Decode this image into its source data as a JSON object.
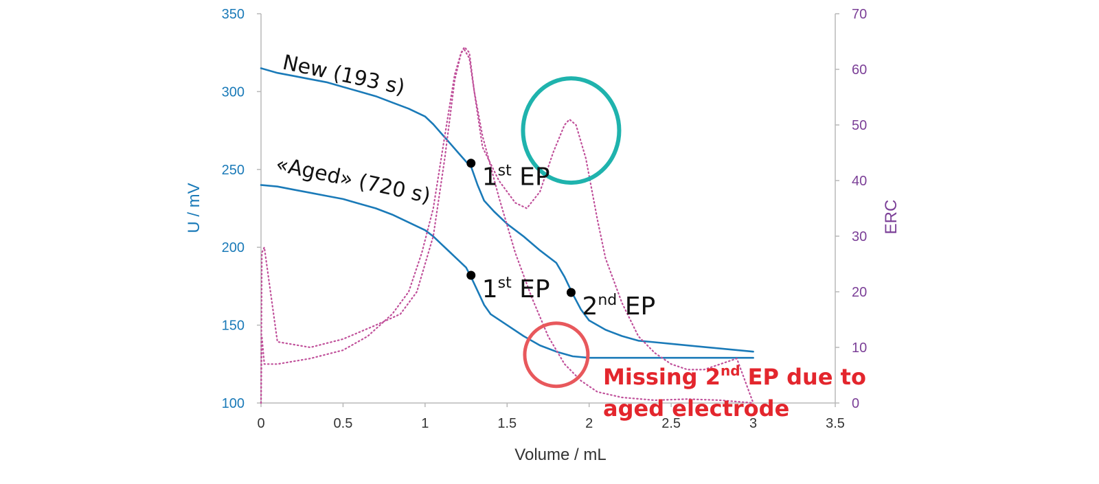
{
  "chart_data": {
    "type": "line",
    "xlabel": "Volume / mL",
    "ylabel_left": "U / mV",
    "ylabel_right": "ERC",
    "xlim": [
      0,
      3.5
    ],
    "ylim_left": [
      100,
      350
    ],
    "ylim_right": [
      0,
      70
    ],
    "x_ticks": [
      "0",
      "0.5",
      "1",
      "1.5",
      "2",
      "2.5",
      "3",
      "3.5"
    ],
    "y_left_ticks": [
      "100",
      "150",
      "200",
      "250",
      "300",
      "350"
    ],
    "y_right_ticks": [
      "0",
      "10",
      "20",
      "30",
      "40",
      "50",
      "60",
      "70"
    ],
    "colors": {
      "potential": "#1a7ab8",
      "erc": "#c0509a",
      "good_circle": "#1fb3ad",
      "bad_circle": "#e8585c",
      "warning": "#e3262d",
      "left_axis": "#1a7ab8",
      "right_axis": "#7b3f97"
    },
    "series": [
      {
        "name": "New (193 s)",
        "axis": "left",
        "points": [
          [
            0,
            315
          ],
          [
            0.1,
            312
          ],
          [
            0.2,
            310
          ],
          [
            0.3,
            308
          ],
          [
            0.4,
            306
          ],
          [
            0.5,
            303
          ],
          [
            0.6,
            300
          ],
          [
            0.7,
            297
          ],
          [
            0.8,
            293
          ],
          [
            0.9,
            289
          ],
          [
            1.0,
            284
          ],
          [
            1.05,
            279
          ],
          [
            1.1,
            273
          ],
          [
            1.15,
            267
          ],
          [
            1.2,
            261
          ],
          [
            1.25,
            255
          ],
          [
            1.28,
            252
          ],
          [
            1.32,
            240
          ],
          [
            1.36,
            230
          ],
          [
            1.42,
            223
          ],
          [
            1.5,
            215
          ],
          [
            1.6,
            207
          ],
          [
            1.7,
            198
          ],
          [
            1.8,
            190
          ],
          [
            1.85,
            181
          ],
          [
            1.9,
            170
          ],
          [
            1.95,
            160
          ],
          [
            2.0,
            153
          ],
          [
            2.1,
            147
          ],
          [
            2.2,
            143
          ],
          [
            2.3,
            140
          ],
          [
            2.4,
            139
          ],
          [
            2.5,
            138
          ],
          [
            2.7,
            136
          ],
          [
            2.9,
            134
          ],
          [
            3.0,
            133
          ]
        ]
      },
      {
        "name": "«Aged» (720 s)",
        "axis": "left",
        "points": [
          [
            0,
            240
          ],
          [
            0.1,
            239
          ],
          [
            0.2,
            237
          ],
          [
            0.3,
            235
          ],
          [
            0.4,
            233
          ],
          [
            0.5,
            231
          ],
          [
            0.6,
            228
          ],
          [
            0.7,
            225
          ],
          [
            0.8,
            221
          ],
          [
            0.9,
            216
          ],
          [
            1.0,
            211
          ],
          [
            1.05,
            207
          ],
          [
            1.1,
            202
          ],
          [
            1.15,
            197
          ],
          [
            1.2,
            192
          ],
          [
            1.25,
            187
          ],
          [
            1.28,
            181
          ],
          [
            1.32,
            172
          ],
          [
            1.36,
            163
          ],
          [
            1.4,
            157
          ],
          [
            1.5,
            150
          ],
          [
            1.6,
            143
          ],
          [
            1.7,
            137
          ],
          [
            1.8,
            133
          ],
          [
            1.9,
            130
          ],
          [
            2.0,
            129
          ],
          [
            2.2,
            129
          ],
          [
            2.5,
            129
          ],
          [
            2.8,
            129
          ],
          [
            3.0,
            129
          ]
        ]
      },
      {
        "name": "",
        "axis": "right",
        "style": "dotted",
        "points": [
          [
            0,
            0
          ],
          [
            0.005,
            27
          ],
          [
            0.02,
            28
          ],
          [
            0.1,
            11
          ],
          [
            0.3,
            10
          ],
          [
            0.5,
            11.5
          ],
          [
            0.7,
            14
          ],
          [
            0.85,
            16
          ],
          [
            0.95,
            20
          ],
          [
            1.05,
            30
          ],
          [
            1.12,
            44
          ],
          [
            1.18,
            58
          ],
          [
            1.22,
            63
          ],
          [
            1.24,
            64
          ],
          [
            1.27,
            63
          ],
          [
            1.3,
            56
          ],
          [
            1.35,
            46
          ],
          [
            1.45,
            40
          ],
          [
            1.55,
            36
          ],
          [
            1.62,
            35
          ],
          [
            1.7,
            38
          ],
          [
            1.78,
            45
          ],
          [
            1.85,
            50
          ],
          [
            1.88,
            51
          ],
          [
            1.92,
            50
          ],
          [
            1.98,
            44
          ],
          [
            2.05,
            33
          ],
          [
            2.1,
            26
          ],
          [
            2.2,
            18
          ],
          [
            2.3,
            12
          ],
          [
            2.4,
            9
          ],
          [
            2.5,
            7
          ],
          [
            2.6,
            6
          ],
          [
            2.7,
            6
          ],
          [
            2.8,
            7
          ],
          [
            2.9,
            8
          ],
          [
            3.0,
            0
          ]
        ]
      },
      {
        "name": "",
        "axis": "right",
        "style": "dotted",
        "points": [
          [
            0,
            0
          ],
          [
            0.005,
            12
          ],
          [
            0.02,
            7
          ],
          [
            0.1,
            7
          ],
          [
            0.3,
            8
          ],
          [
            0.5,
            9.5
          ],
          [
            0.65,
            12
          ],
          [
            0.8,
            16
          ],
          [
            0.9,
            20
          ],
          [
            0.98,
            27
          ],
          [
            1.05,
            35
          ],
          [
            1.12,
            48
          ],
          [
            1.18,
            59
          ],
          [
            1.22,
            63
          ],
          [
            1.24,
            63.5
          ],
          [
            1.27,
            62
          ],
          [
            1.3,
            56
          ],
          [
            1.35,
            48
          ],
          [
            1.45,
            37
          ],
          [
            1.55,
            27
          ],
          [
            1.65,
            19
          ],
          [
            1.75,
            12
          ],
          [
            1.85,
            7
          ],
          [
            1.95,
            4
          ],
          [
            2.05,
            2
          ],
          [
            2.2,
            1
          ],
          [
            2.4,
            0.5
          ],
          [
            2.6,
            0.7
          ],
          [
            2.8,
            0.5
          ],
          [
            3.0,
            0
          ]
        ]
      }
    ],
    "endpoints": [
      {
        "x": 1.28,
        "y": 254,
        "base": "1",
        "sup": "st",
        "tail": " EP"
      },
      {
        "x": 1.28,
        "y": 182,
        "base": "1",
        "sup": "st",
        "tail": " EP"
      },
      {
        "x": 1.89,
        "y": 171,
        "base": "2",
        "sup": "nd",
        "tail": " EP"
      }
    ],
    "curve_labels": {
      "new": "New (193 s)",
      "aged": "«Aged» (720 s)"
    },
    "annotation": {
      "line1_pre": "Missing 2",
      "line1_sup": "nd",
      "line1_post": " EP due to",
      "line2": "aged electrode"
    },
    "highlight_circles": [
      {
        "label": "second endpoint peak",
        "cx_value": 1.89,
        "cy_erc": 49,
        "color": "#1fb3ad"
      },
      {
        "label": "missing second endpoint",
        "cx_value": 1.8,
        "cy_mv": 131,
        "color": "#e8585c"
      }
    ]
  }
}
